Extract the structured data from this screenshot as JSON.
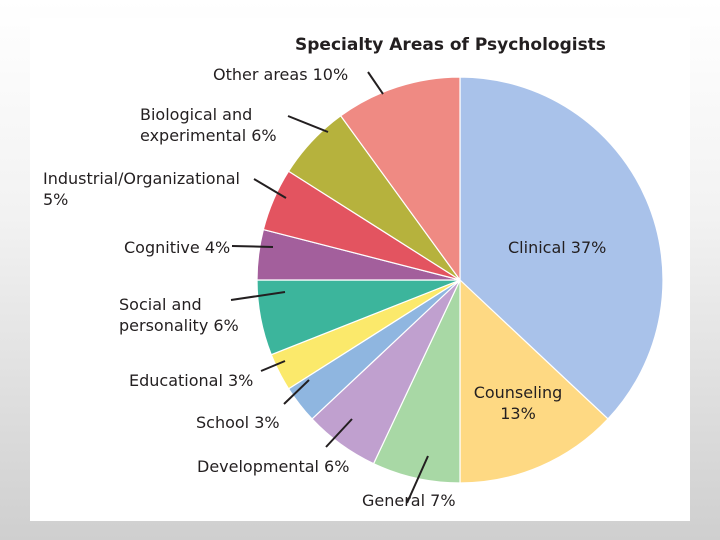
{
  "chart_data": {
    "type": "pie",
    "title": "Specialty Areas of Psychologists",
    "slices": [
      {
        "name": "Clinical",
        "value": 37,
        "display": [
          "Clinical 37%"
        ],
        "color": "#a9c2ea"
      },
      {
        "name": "Counseling",
        "value": 13,
        "display": [
          "Counseling",
          "13%"
        ],
        "color": "#fed983"
      },
      {
        "name": "General",
        "value": 7,
        "display": [
          "General 7%"
        ],
        "color": "#a8d8a5"
      },
      {
        "name": "Developmental",
        "value": 6,
        "display": [
          "Developmental 6%"
        ],
        "color": "#c0a0cf"
      },
      {
        "name": "School",
        "value": 3,
        "display": [
          "School 3%"
        ],
        "color": "#8fb6e0"
      },
      {
        "name": "Educational",
        "value": 3,
        "display": [
          "Educational 3%"
        ],
        "color": "#fbe96b"
      },
      {
        "name": "Social and personality",
        "value": 6,
        "display": [
          "Social and",
          "personality 6%"
        ],
        "color": "#3cb59c"
      },
      {
        "name": "Cognitive",
        "value": 4,
        "display": [
          "Cognitive 4%"
        ],
        "color": "#a35f9c"
      },
      {
        "name": "Industrial/Organizational",
        "value": 5,
        "display": [
          "Industrial/Organizational",
          "5%"
        ],
        "color": "#e35460"
      },
      {
        "name": "Biological and experimental",
        "value": 6,
        "display": [
          "Biological and",
          "experimental 6%"
        ],
        "color": "#b6b23d"
      },
      {
        "name": "Other areas",
        "value": 10,
        "display": [
          "Other areas 10%"
        ],
        "color": "#ef8a83"
      }
    ]
  }
}
